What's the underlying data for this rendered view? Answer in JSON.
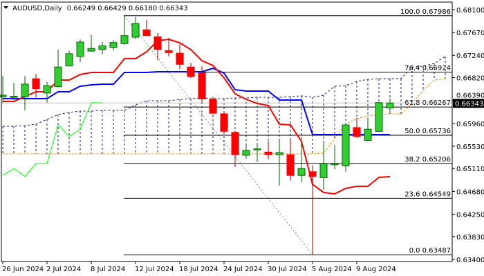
{
  "header": {
    "symbol": "AUDUSD,Daily",
    "ohlc": "0.66249 0.66429 0.66180 0.66343",
    "menu_icon": "triangle-down-icon"
  },
  "chart_data": {
    "type": "candlestick",
    "title": "AUDUSD,Daily",
    "ylim": [
      0.634,
      0.681
    ],
    "grid": false,
    "y_ticks": [
      "0.68100",
      "0.67670",
      "0.67240",
      "0.66820",
      "0.66390",
      "0.65960",
      "0.65530",
      "0.65110",
      "0.64680",
      "0.64250",
      "0.63830",
      "0.63400"
    ],
    "x_ticks": [
      {
        "bar": 0,
        "label": "26 Jun 2024"
      },
      {
        "bar": 4,
        "label": "2 Jul 2024"
      },
      {
        "bar": 8,
        "label": "8 Jul 2024"
      },
      {
        "bar": 12,
        "label": "12 Jul 2024"
      },
      {
        "bar": 16,
        "label": "18 Jul 2024"
      },
      {
        "bar": 20,
        "label": "24 Jul 2024"
      },
      {
        "bar": 24,
        "label": "30 Jul 2024"
      },
      {
        "bar": 28,
        "label": "5 Aug 2024"
      },
      {
        "bar": 32,
        "label": "9 Aug 2024"
      }
    ],
    "current_price": "0.66343",
    "candles": [
      {
        "date": "2024-06-26",
        "o": 0.6646,
        "h": 0.6685,
        "l": 0.6635,
        "c": 0.6649
      },
      {
        "date": "2024-06-27",
        "o": 0.6646,
        "h": 0.6672,
        "l": 0.664,
        "c": 0.6647
      },
      {
        "date": "2024-06-28",
        "o": 0.6646,
        "h": 0.6685,
        "l": 0.662,
        "c": 0.667
      },
      {
        "date": "2024-07-01",
        "o": 0.668,
        "h": 0.6689,
        "l": 0.6645,
        "c": 0.6661
      },
      {
        "date": "2024-07-02",
        "o": 0.6653,
        "h": 0.6674,
        "l": 0.6635,
        "c": 0.6667
      },
      {
        "date": "2024-07-03",
        "o": 0.6665,
        "h": 0.6735,
        "l": 0.6664,
        "c": 0.6702
      },
      {
        "date": "2024-07-04",
        "o": 0.6704,
        "h": 0.6733,
        "l": 0.6703,
        "c": 0.6727
      },
      {
        "date": "2024-07-05",
        "o": 0.6722,
        "h": 0.6754,
        "l": 0.6711,
        "c": 0.6749
      },
      {
        "date": "2024-07-08",
        "o": 0.6732,
        "h": 0.6762,
        "l": 0.6731,
        "c": 0.6737
      },
      {
        "date": "2024-07-09",
        "o": 0.6735,
        "h": 0.6749,
        "l": 0.6726,
        "c": 0.6742
      },
      {
        "date": "2024-07-10",
        "o": 0.6739,
        "h": 0.6753,
        "l": 0.6733,
        "c": 0.6748
      },
      {
        "date": "2024-07-11",
        "o": 0.6746,
        "h": 0.68,
        "l": 0.6744,
        "c": 0.6761
      },
      {
        "date": "2024-07-12",
        "o": 0.6758,
        "h": 0.6796,
        "l": 0.6755,
        "c": 0.6784
      },
      {
        "date": "2024-07-15",
        "o": 0.6772,
        "h": 0.6791,
        "l": 0.676,
        "c": 0.6761
      },
      {
        "date": "2024-07-16",
        "o": 0.6759,
        "h": 0.6766,
        "l": 0.6715,
        "c": 0.6735
      },
      {
        "date": "2024-07-17",
        "o": 0.6733,
        "h": 0.6757,
        "l": 0.6722,
        "c": 0.6729
      },
      {
        "date": "2024-07-18",
        "o": 0.6728,
        "h": 0.6745,
        "l": 0.6698,
        "c": 0.6707
      },
      {
        "date": "2024-07-19",
        "o": 0.6702,
        "h": 0.671,
        "l": 0.6681,
        "c": 0.6684
      },
      {
        "date": "2024-07-22",
        "o": 0.6691,
        "h": 0.6703,
        "l": 0.6632,
        "c": 0.6642
      },
      {
        "date": "2024-07-23",
        "o": 0.6641,
        "h": 0.6646,
        "l": 0.6613,
        "c": 0.6615
      },
      {
        "date": "2024-07-24",
        "o": 0.6614,
        "h": 0.6616,
        "l": 0.6578,
        "c": 0.6581
      },
      {
        "date": "2024-07-25",
        "o": 0.6579,
        "h": 0.6582,
        "l": 0.6514,
        "c": 0.6537
      },
      {
        "date": "2024-07-26",
        "o": 0.6536,
        "h": 0.6555,
        "l": 0.653,
        "c": 0.6545
      },
      {
        "date": "2024-07-29",
        "o": 0.6547,
        "h": 0.6557,
        "l": 0.6523,
        "c": 0.6548
      },
      {
        "date": "2024-07-30",
        "o": 0.6542,
        "h": 0.6562,
        "l": 0.6528,
        "c": 0.6537
      },
      {
        "date": "2024-07-31",
        "o": 0.6537,
        "h": 0.6565,
        "l": 0.6479,
        "c": 0.6541
      },
      {
        "date": "2024-08-01",
        "o": 0.6537,
        "h": 0.6565,
        "l": 0.6488,
        "c": 0.6498
      },
      {
        "date": "2024-08-02",
        "o": 0.6498,
        "h": 0.656,
        "l": 0.6485,
        "c": 0.6511
      },
      {
        "date": "2024-08-05",
        "o": 0.6505,
        "h": 0.6517,
        "l": 0.6349,
        "c": 0.6496
      },
      {
        "date": "2024-08-06",
        "o": 0.6494,
        "h": 0.656,
        "l": 0.6471,
        "c": 0.652
      },
      {
        "date": "2024-08-07",
        "o": 0.6518,
        "h": 0.6555,
        "l": 0.651,
        "c": 0.652
      },
      {
        "date": "2024-08-08",
        "o": 0.6516,
        "h": 0.6595,
        "l": 0.6505,
        "c": 0.6593
      },
      {
        "date": "2024-08-09",
        "o": 0.6588,
        "h": 0.6606,
        "l": 0.6569,
        "c": 0.6571
      },
      {
        "date": "2024-08-12",
        "o": 0.6564,
        "h": 0.6607,
        "l": 0.6563,
        "c": 0.6585
      },
      {
        "date": "2024-08-13",
        "o": 0.6581,
        "h": 0.6636,
        "l": 0.658,
        "c": 0.6635
      },
      {
        "date": "2024-08-14",
        "o": 0.66249,
        "h": 0.66429,
        "l": 0.6618,
        "c": 0.66343
      }
    ],
    "ichimoku": {
      "tenkan": [
        0.66373,
        0.66373,
        0.66464,
        0.66555,
        0.66555,
        0.66775,
        0.66775,
        0.66879,
        0.66918,
        0.66918,
        0.66918,
        0.67178,
        0.67178,
        0.67308,
        0.67516,
        0.67542,
        0.67477,
        0.67347,
        0.67139,
        0.67048,
        0.66814,
        0.66516,
        0.66412,
        0.66334,
        0.66295,
        0.65944,
        0.65931,
        0.6562,
        0.64814,
        0.64659,
        0.64633,
        0.64737,
        0.64775,
        0.64775,
        0.64944,
        0.64957
      ],
      "kijun": [
        0.66425,
        0.66425,
        0.66425,
        0.66425,
        0.66425,
        0.66555,
        0.66555,
        0.66659,
        0.66685,
        0.66698,
        0.66698,
        0.66918,
        0.66918,
        0.66918,
        0.66931,
        0.66931,
        0.66931,
        0.66931,
        0.66931,
        0.66996,
        0.66905,
        0.66594,
        0.66568,
        0.66568,
        0.66568,
        0.66399,
        0.66399,
        0.66399,
        0.6575,
        0.6575,
        0.6575,
        0.6575,
        0.6575,
        0.6575,
        0.6575,
        0.6575
      ],
      "chikou_shift": 26,
      "senkou_a": [
        0.65905,
        0.65905,
        0.65918,
        0.65944,
        0.66035,
        0.66126,
        0.66165,
        0.66191,
        0.66191,
        0.66204,
        0.66204,
        0.66204,
        0.66308,
        0.66386,
        0.66386,
        0.66386,
        0.66412,
        0.66425,
        0.66438,
        0.66425,
        0.66425,
        0.66438,
        0.66438,
        0.66451,
        0.66451,
        0.66451,
        0.66464,
        0.66477,
        0.66451,
        0.6649,
        0.66659,
        0.66672,
        0.6675,
        0.66788,
        0.66801,
        0.66801,
        0.66801,
        0.67022,
        0.67035,
        0.67087,
        0.67217
      ],
      "senkou_b": [
        0.65386,
        0.65386,
        0.65386,
        0.65386,
        0.65386,
        0.65386,
        0.65386,
        0.65386,
        0.65386,
        0.65386,
        0.65386,
        0.65386,
        0.65386,
        0.65386,
        0.65386,
        0.65386,
        0.65386,
        0.65386,
        0.65386,
        0.65386,
        0.65386,
        0.65386,
        0.65386,
        0.65386,
        0.65386,
        0.65386,
        0.65386,
        0.65386,
        0.65386,
        0.65399,
        0.65672,
        0.65944,
        0.66048,
        0.661,
        0.66126,
        0.66139,
        0.66139,
        0.66334,
        0.66581,
        0.66775,
        0.66801
      ]
    },
    "fibonacci": {
      "from_bar": 11,
      "high": 0.67986,
      "low": 0.63487,
      "low_bar": 28,
      "levels": [
        {
          "label": "100.0 0.67986",
          "price": 0.67986
        },
        {
          "label": "76.4 0.66924",
          "price": 0.66924
        },
        {
          "label": "61.8 0.66267",
          "price": 0.66267
        },
        {
          "label": "50.0 0.65736",
          "price": 0.65736
        },
        {
          "label": "38.2 0.65206",
          "price": 0.65206
        },
        {
          "label": "23.6 0.64549",
          "price": 0.64549
        },
        {
          "label": "0.0 0.63487",
          "price": 0.63487
        }
      ]
    },
    "colors": {
      "bull_body": "#32cd32",
      "bull_edge": "#006400",
      "bear_body": "#ff0000",
      "bear_edge": "#8b0000",
      "tenkan": "#ff0000",
      "kijun": "#0000ff",
      "chikou": "#00ff00",
      "senkou_a": "#191970",
      "senkou_b": "#ff8c00",
      "price_line": "#c0c0c0"
    }
  }
}
